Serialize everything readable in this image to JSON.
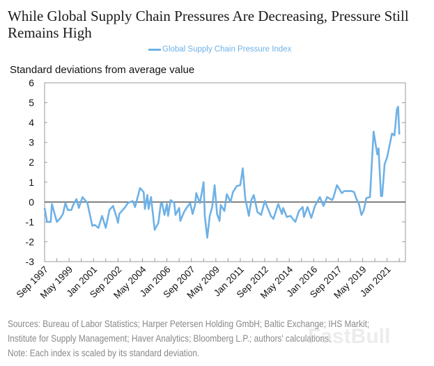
{
  "title": "While Global Supply Chain Pressures Are Decreasing, Pressure Still Remains High",
  "watermark": "FastBull",
  "footer": {
    "sources_line1": "Sources: Bureau of Labor Statistics; Harper Petersen Holding GmbH; Baltic Exchange; IHS Markit;",
    "sources_line2": "Institute for Supply Management; Haver Analytics; Bloomberg L.P.; authors' calculations.",
    "note": "Note: Each index is scaled by its standard deviation."
  },
  "chart_data": {
    "type": "line",
    "ylabel": "Standard deviations from average value",
    "ylim": [
      -3,
      6
    ],
    "yticks": [
      6,
      5,
      4,
      3,
      2,
      1,
      0,
      -1,
      -2,
      -3
    ],
    "xlim": [
      "1997-09",
      "2022-04"
    ],
    "xtick_labels": [
      "Sep 1997",
      "May 1999",
      "Jan 2001",
      "Sep 2002",
      "May 2004",
      "Jan 2006",
      "Sep 2007",
      "May 2009",
      "Jan 2011",
      "Sep 2012",
      "May 2014",
      "Jan 2016",
      "Sep 2017",
      "May 2019",
      "Jan 2021"
    ],
    "xtick_dates": [
      "1997-09",
      "1999-05",
      "2001-01",
      "2002-09",
      "2004-05",
      "2006-01",
      "2007-09",
      "2009-05",
      "2011-01",
      "2012-09",
      "2014-05",
      "2016-01",
      "2017-09",
      "2019-05",
      "2021-01"
    ],
    "grid": false,
    "reference_line": 0,
    "legend_position": "top-center",
    "series": [
      {
        "name": "Global Supply Chain Pressure Index",
        "color": "#6eb1e6",
        "x": [
          "1997-09",
          "1997-11",
          "1998-02",
          "1998-03",
          "1998-07",
          "1998-10",
          "1998-12",
          "1999-02",
          "1999-04",
          "1999-07",
          "1999-08",
          "1999-11",
          "2000-01",
          "2000-04",
          "2000-08",
          "2000-12",
          "2001-02",
          "2001-05",
          "2001-08",
          "2001-11",
          "2002-02",
          "2002-05",
          "2002-08",
          "2002-09",
          "2002-10",
          "2003-03",
          "2003-05",
          "2003-09",
          "2003-11",
          "2004-03",
          "2004-06",
          "2004-07",
          "2004-09",
          "2004-10",
          "2004-12",
          "2005-03",
          "2005-06",
          "2005-08",
          "2005-09",
          "2005-11",
          "2006-01",
          "2006-02",
          "2006-04",
          "2006-07",
          "2006-08",
          "2006-11",
          "2006-12",
          "2007-03",
          "2007-05",
          "2007-08",
          "2007-10",
          "2007-12",
          "2008-01",
          "2008-04",
          "2008-07",
          "2008-08",
          "2008-10",
          "2008-12",
          "2009-02",
          "2009-04",
          "2009-06",
          "2009-08",
          "2009-09",
          "2009-12",
          "2010-02",
          "2010-05",
          "2010-07",
          "2010-10",
          "2011-01",
          "2011-03",
          "2011-05",
          "2011-08",
          "2011-10",
          "2011-12",
          "2012-03",
          "2012-06",
          "2012-09",
          "2012-11",
          "2013-02",
          "2013-04",
          "2013-08",
          "2013-11",
          "2013-12",
          "2014-03",
          "2014-06",
          "2014-10",
          "2015-01",
          "2015-04",
          "2015-05",
          "2015-08",
          "2015-11",
          "2016-02",
          "2016-06",
          "2016-09",
          "2016-12",
          "2017-04",
          "2017-05",
          "2017-08",
          "2017-12",
          "2018-02",
          "2018-08",
          "2018-10",
          "2018-12",
          "2019-02",
          "2019-04",
          "2019-06",
          "2019-08",
          "2019-11",
          "2020-02",
          "2020-03",
          "2020-05",
          "2020-06",
          "2020-07",
          "2020-08",
          "2020-09",
          "2020-11",
          "2021-01",
          "2021-03",
          "2021-05",
          "2021-07",
          "2021-09",
          "2021-10",
          "2021-11"
        ],
        "values": [
          -0.3,
          -1.0,
          -1.0,
          -0.1,
          -1.0,
          -0.8,
          -0.6,
          -0.05,
          -0.4,
          -0.4,
          -0.2,
          0.15,
          -0.3,
          0.25,
          -0.05,
          -1.2,
          -1.15,
          -1.3,
          -0.7,
          -1.3,
          -0.4,
          -0.2,
          -0.8,
          -1.05,
          -0.6,
          -0.25,
          -0.05,
          0.05,
          -0.25,
          0.7,
          0.5,
          -0.35,
          0.35,
          -0.35,
          0.25,
          -1.4,
          -1.05,
          -0.1,
          -0.05,
          -0.65,
          -0.1,
          -0.7,
          0.1,
          -0.05,
          -0.65,
          -0.3,
          -0.95,
          -0.5,
          -0.3,
          -0.05,
          -0.6,
          -0.15,
          0.45,
          -0.05,
          1.0,
          -0.7,
          -1.8,
          -0.7,
          -0.25,
          0.85,
          -0.6,
          -0.95,
          -0.15,
          -0.45,
          0.4,
          0.0,
          0.5,
          0.8,
          0.85,
          1.7,
          0.2,
          -0.7,
          0.1,
          0.35,
          -0.5,
          -0.65,
          0.05,
          -0.25,
          -0.7,
          -0.85,
          -0.1,
          -0.6,
          -0.3,
          -0.75,
          -0.7,
          -1.0,
          -0.45,
          -0.25,
          -0.75,
          -0.25,
          -0.8,
          -0.2,
          0.25,
          -0.2,
          0.25,
          0.1,
          0.2,
          0.85,
          0.45,
          0.55,
          0.55,
          0.5,
          0.15,
          -0.1,
          -0.65,
          -0.4,
          0.2,
          0.25,
          3.55,
          3.15,
          2.4,
          2.7,
          1.55,
          0.3,
          0.3,
          1.9,
          2.25,
          2.85,
          3.45,
          3.35,
          4.65,
          4.8,
          3.4
        ]
      }
    ]
  }
}
